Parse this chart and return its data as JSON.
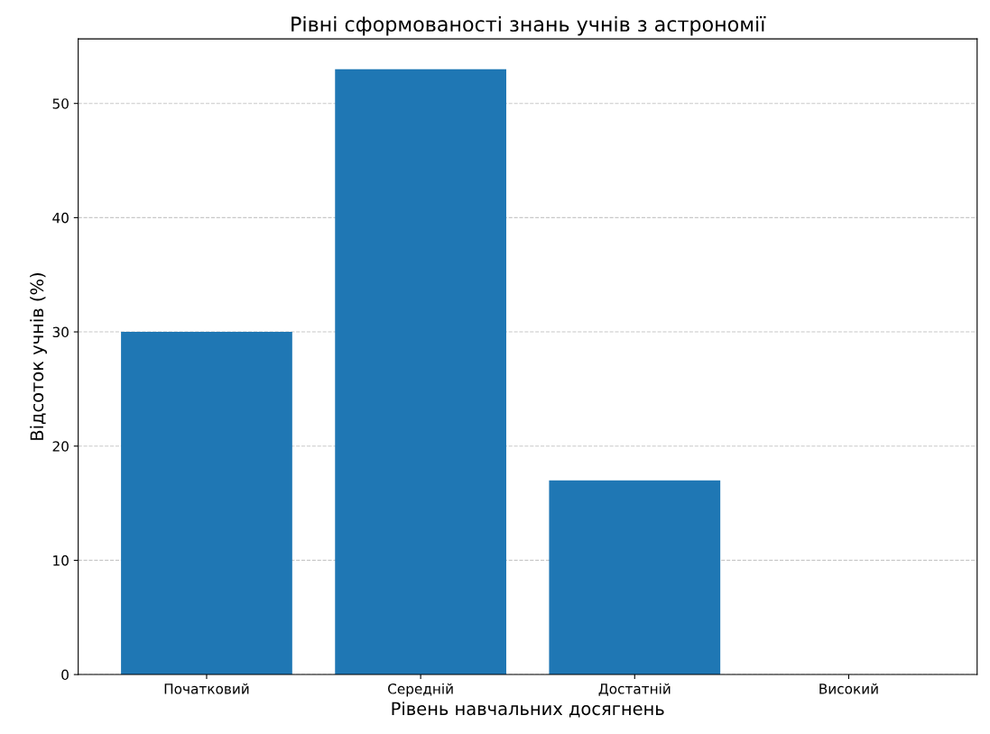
{
  "chart_data": {
    "type": "bar",
    "title": "Рівні сформованості знань учнів з астрономії",
    "xlabel": "Рівень навчальних досягнень",
    "ylabel": "Відсоток учнів (%)",
    "categories": [
      "Початковий",
      "Середній",
      "Достатній",
      "Високий"
    ],
    "values": [
      30,
      53,
      17,
      0
    ],
    "color": "#1f77b4",
    "ylim": [
      0,
      55.65
    ],
    "yticks": [
      0,
      10,
      20,
      30,
      40,
      50
    ],
    "grid": "y"
  }
}
